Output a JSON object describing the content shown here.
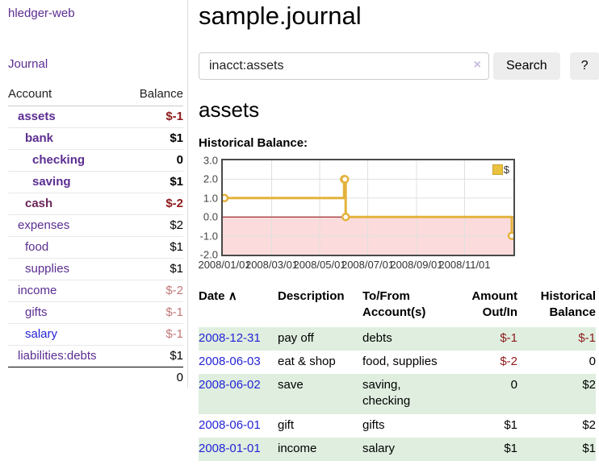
{
  "app": {
    "brand": "hledger-web",
    "nav_journal": "Journal"
  },
  "page": {
    "title": "sample.journal",
    "account_heading": "assets"
  },
  "search": {
    "value": "inacct:assets",
    "clear_icon": "×",
    "button_label": "Search",
    "help_label": "?"
  },
  "colors": {
    "accent_purple": "#5b2d91",
    "link_blue": "#2424d6",
    "negative_strong": "#8e1a1a",
    "negative_faded": "#c27979",
    "row_stripe_green": "#dfeedf",
    "series_gold": "#e3b23c"
  },
  "sidebar_accounts": {
    "headers": {
      "account": "Account",
      "balance": "Balance"
    },
    "rows": [
      {
        "name": "assets",
        "balance": "$-1",
        "nc": "aname l1 purple bold",
        "bc": "bal bold negS"
      },
      {
        "name": "bank",
        "balance": "$1",
        "nc": "aname l2 purple bold",
        "bc": "bal bold"
      },
      {
        "name": "checking",
        "balance": "0",
        "nc": "aname l3 purple bold",
        "bc": "bal bold"
      },
      {
        "name": "saving",
        "balance": "$1",
        "nc": "aname l3 purple bold",
        "bc": "bal bold"
      },
      {
        "name": "cash",
        "balance": "$-2",
        "nc": "aname l2 maroon bold",
        "bc": "bal bold negS"
      },
      {
        "name": "expenses",
        "balance": "$2",
        "nc": "aname l1 purple",
        "bc": "bal"
      },
      {
        "name": "food",
        "balance": "$1",
        "nc": "aname l2 purple",
        "bc": "bal"
      },
      {
        "name": "supplies",
        "balance": "$1",
        "nc": "aname l2 purple",
        "bc": "bal"
      },
      {
        "name": "income",
        "balance": "$-2",
        "nc": "aname l1 purple",
        "bc": "bal negF"
      },
      {
        "name": "gifts",
        "balance": "$-1",
        "nc": "aname l2 purple",
        "bc": "bal negF"
      },
      {
        "name": "salary",
        "balance": "$-1",
        "nc": "aname l2 blue",
        "bc": "bal negF"
      },
      {
        "name": "liabilities:debts",
        "balance": "$1",
        "nc": "aname l1 purple",
        "bc": "bal"
      }
    ],
    "total": "0"
  },
  "chart_data": {
    "type": "line",
    "title": "Historical Balance:",
    "series": [
      {
        "name": "$",
        "step": true,
        "color": "#e3b23c",
        "points": [
          [
            "2008-01-01",
            1
          ],
          [
            "2008-06-01",
            2
          ],
          [
            "2008-06-02",
            2
          ],
          [
            "2008-06-03",
            0
          ],
          [
            "2008-12-31",
            -1
          ]
        ]
      }
    ],
    "x_range": [
      "2008-01-01",
      "2008-12-31"
    ],
    "ylim": [
      -2,
      3
    ],
    "y_ticks": [
      3,
      2,
      1,
      0,
      -1,
      -2
    ],
    "y_tick_labels": [
      "3.0",
      "2.0",
      "1.0",
      "0.0",
      "-1.0",
      "-2.0"
    ],
    "x_ticks": [
      "2008-01-01",
      "2008-03-01",
      "2008-05-01",
      "2008-07-01",
      "2008-09-01",
      "2008-11-01"
    ],
    "x_tick_labels": [
      "2008/01/01",
      "2008/03/01",
      "2008/05/01",
      "2008/07/01",
      "2008/09/01",
      "2008/11/01"
    ],
    "legend_label": "$",
    "legend_position": "top-right",
    "grid": true,
    "negative_region_color": "#fbdbdb",
    "zero_line_color": "#8b0000"
  },
  "register": {
    "headers": {
      "date": "Date",
      "sort_caret": "∧",
      "description": "Description",
      "accounts_line1": "To/From",
      "accounts_line2": "Account(s)",
      "amount_line1": "Amount",
      "amount_line2": "Out/In",
      "balance_line1": "Historical",
      "balance_line2": "Balance"
    },
    "rows": [
      {
        "date": "2008-12-31",
        "desc": "pay off",
        "accts": "debts",
        "amount": "$-1",
        "balance": "$-1",
        "ac": "num neg",
        "hc": "num neg"
      },
      {
        "date": "2008-06-03",
        "desc": "eat & shop",
        "accts": "food, supplies",
        "amount": "$-2",
        "balance": "0",
        "ac": "num neg",
        "hc": "num"
      },
      {
        "date": "2008-06-02",
        "desc": "save",
        "accts": "saving, checking",
        "amount": "0",
        "balance": "$2",
        "ac": "num",
        "hc": "num"
      },
      {
        "date": "2008-06-01",
        "desc": "gift",
        "accts": "gifts",
        "amount": "$1",
        "balance": "$2",
        "ac": "num",
        "hc": "num"
      },
      {
        "date": "2008-01-01",
        "desc": "income",
        "accts": "salary",
        "amount": "$1",
        "balance": "$1",
        "ac": "num",
        "hc": "num"
      }
    ]
  }
}
